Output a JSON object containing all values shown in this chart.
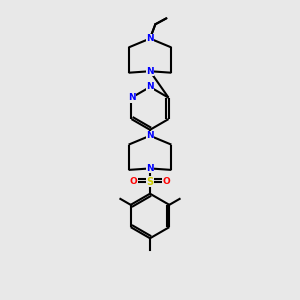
{
  "bg_color": "#e8e8e8",
  "bond_color": "#000000",
  "N_color": "#0000ff",
  "S_color": "#cccc00",
  "O_color": "#ff0000",
  "lw": 1.5,
  "dbo": 0.008,
  "figsize": [
    3.0,
    3.0
  ],
  "dpi": 100,
  "xlim": [
    0.25,
    0.75
  ],
  "ylim": [
    0.02,
    1.02
  ]
}
